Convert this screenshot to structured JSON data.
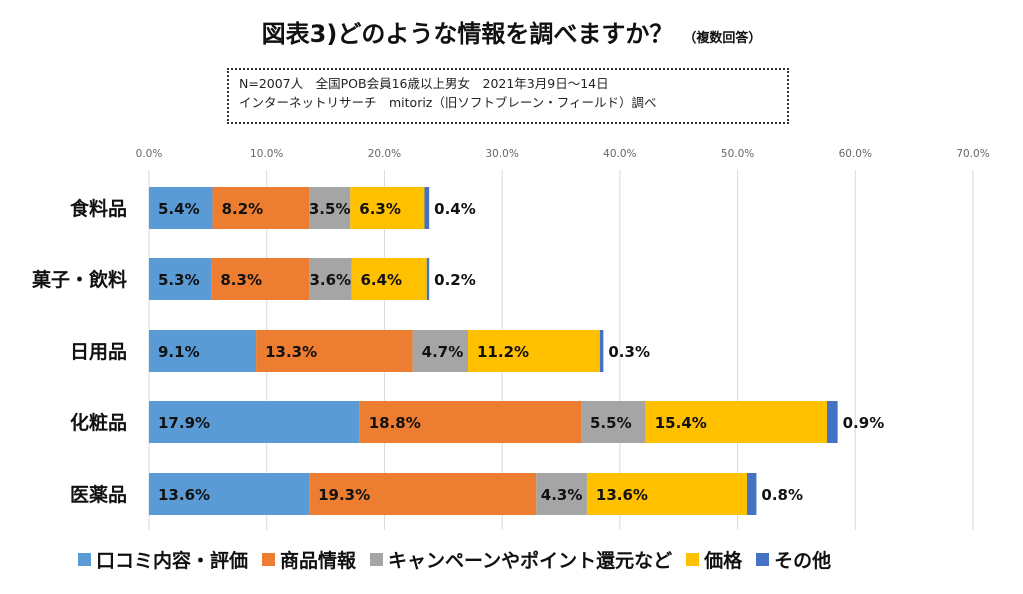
{
  "header": {
    "title": "図表3)どのような情報を調べますか？",
    "subtitle": "（複数回答）"
  },
  "note": {
    "line1": "N=2007人　全国POB会員16歳以上男女　2021年3月9日〜14日",
    "line2": "インターネットリサーチ　mitoriz（旧ソフトブレーン・フィールド）調べ"
  },
  "chart_data": {
    "type": "bar",
    "orientation": "horizontal",
    "stacked": true,
    "categories": [
      "食料品",
      "菓子・飲料",
      "日用品",
      "化粧品",
      "医薬品"
    ],
    "series": [
      {
        "name": "口コミ内容・評価",
        "color": "#5b9bd5",
        "values": [
          5.4,
          5.3,
          9.1,
          17.9,
          13.6
        ]
      },
      {
        "name": "商品情報",
        "color": "#ed7d31",
        "values": [
          8.2,
          8.3,
          13.3,
          18.8,
          19.3
        ]
      },
      {
        "name": "キャンペーンやポイント還元など",
        "color": "#a5a5a5",
        "values": [
          3.5,
          3.6,
          4.7,
          5.5,
          4.3
        ]
      },
      {
        "name": "価格",
        "color": "#ffc000",
        "values": [
          6.3,
          6.4,
          11.2,
          15.4,
          13.6
        ]
      },
      {
        "name": "その他",
        "color": "#4472c4",
        "values": [
          0.4,
          0.2,
          0.3,
          0.9,
          0.8
        ]
      }
    ],
    "data_labels": [
      [
        "5.4%",
        "8.2%",
        "3.5%",
        "6.3%",
        "0.4%"
      ],
      [
        "5.3%",
        "8.3%",
        "3.6%",
        "6.4%",
        "0.2%"
      ],
      [
        "9.1%",
        "13.3%",
        "4.7%",
        "11.2%",
        "0.3%"
      ],
      [
        "17.9%",
        "18.8%",
        "5.5%",
        "15.4%",
        "0.9%"
      ],
      [
        "13.6%",
        "19.3%",
        "4.3%",
        "13.6%",
        "0.8%"
      ]
    ],
    "xticks": [
      "0.0%",
      "10.0%",
      "20.0%",
      "30.0%",
      "40.0%",
      "50.0%",
      "60.0%",
      "70.0%"
    ],
    "xlim": [
      0,
      70
    ],
    "unit": "%",
    "grid": true,
    "legend_position": "bottom"
  }
}
